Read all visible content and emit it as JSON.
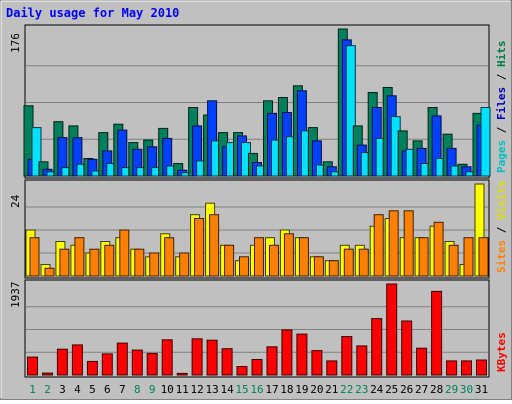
{
  "chart_data": {
    "type": "bar",
    "title": "Daily usage for May 2010",
    "categories": [
      "1",
      "2",
      "3",
      "4",
      "5",
      "6",
      "7",
      "8",
      "9",
      "10",
      "11",
      "12",
      "13",
      "14",
      "15",
      "16",
      "17",
      "18",
      "19",
      "20",
      "21",
      "22",
      "23",
      "24",
      "25",
      "26",
      "27",
      "28",
      "29",
      "30",
      "31"
    ],
    "weekend_days": [
      "1",
      "2",
      "8",
      "9",
      "15",
      "16",
      "22",
      "23",
      "29",
      "30"
    ],
    "panels": [
      {
        "id": "top",
        "ymax_label": "176",
        "ylim": [
          0,
          176
        ],
        "right_label": [
          "Pages",
          "Files",
          "Hits"
        ],
        "right_label_colors": [
          "#00c0c0",
          "#0000c0",
          "#008040"
        ],
        "series": [
          {
            "name": "Hits",
            "color": "#00805c",
            "values": [
              84,
              17,
              65,
              60,
              21,
              52,
              62,
              40,
              43,
              57,
              15,
              82,
              73,
              52,
              52,
              27,
              90,
              94,
              108,
              58,
              17,
              176,
              60,
              100,
              106,
              54,
              42,
              82,
              50,
              14,
              75
            ]
          },
          {
            "name": "Files",
            "color": "#0040ff",
            "values": [
              20,
              8,
              46,
              46,
              20,
              30,
              55,
              32,
              35,
              45,
              7,
              60,
              90,
              35,
              48,
              16,
              75,
              76,
              102,
              42,
              11,
              163,
              37,
              82,
              96,
              30,
              33,
              72,
              33,
              11,
              61
            ]
          },
          {
            "name": "Pages",
            "color": "#00e0ff",
            "values": [
              58,
              5,
              10,
              14,
              6,
              15,
              10,
              10,
              10,
              12,
              4,
              18,
              42,
              40,
              40,
              12,
              43,
              47,
              54,
              13,
              5,
              156,
              28,
              45,
              71,
              32,
              15,
              21,
              12,
              5,
              82
            ]
          }
        ]
      },
      {
        "id": "middle",
        "ymax_label": "24",
        "ylim": [
          0,
          24
        ],
        "right_label": [
          "Sites",
          "Visits"
        ],
        "right_label_colors": [
          "#ff8000",
          "#e0e000"
        ],
        "series": [
          {
            "name": "Visits",
            "color": "#ffff00",
            "values": [
              12,
              3,
              9,
              8,
              6,
              9,
              10,
              7,
              5,
              11,
              5,
              16,
              19,
              8,
              4,
              8,
              10,
              12,
              10,
              5,
              4,
              8,
              8,
              13,
              15,
              10,
              10,
              13,
              9,
              3,
              24
            ]
          },
          {
            "name": "Sites",
            "color": "#ff8000",
            "values": [
              10,
              2,
              7,
              10,
              7,
              8,
              12,
              7,
              6,
              10,
              6,
              15,
              16,
              8,
              5,
              10,
              8,
              11,
              10,
              5,
              4,
              7,
              7,
              16,
              17,
              17,
              10,
              14,
              8,
              10,
              10
            ]
          }
        ]
      },
      {
        "id": "bottom",
        "ymax_label": "1937",
        "ylim": [
          0,
          1937
        ],
        "right_label": [
          "KBytes"
        ],
        "right_label_colors": [
          "#ff0000"
        ],
        "series": [
          {
            "name": "KBytes",
            "color": "#ff0000",
            "values": [
              380,
              40,
              550,
              640,
              290,
              450,
              680,
              530,
              460,
              750,
              35,
              770,
              740,
              560,
              180,
              330,
              600,
              960,
              870,
              520,
              300,
              820,
              620,
              1200,
              1937,
              1150,
              570,
              1780,
              300,
              300,
              320
            ]
          }
        ]
      }
    ]
  }
}
